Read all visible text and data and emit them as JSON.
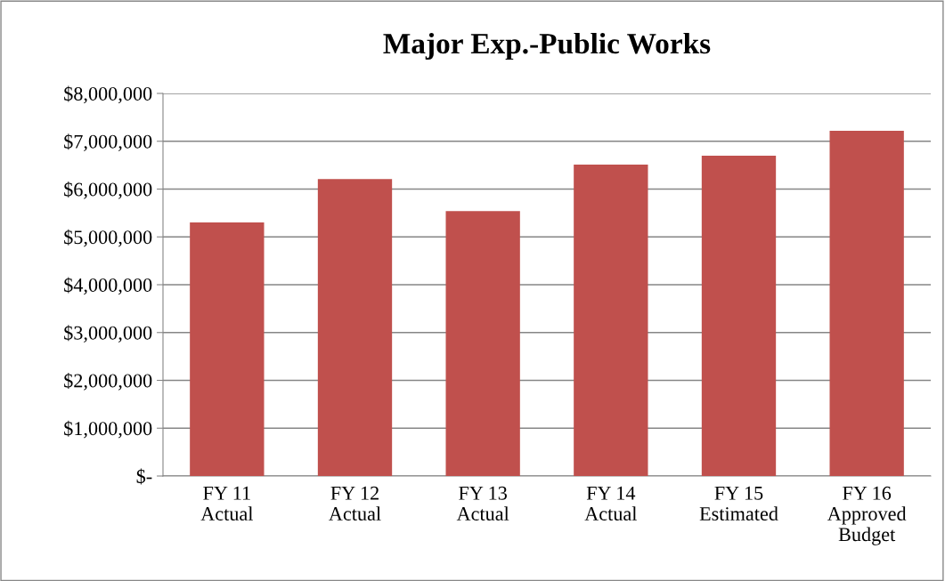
{
  "chart_data": {
    "type": "bar",
    "title": "Major Exp.-Public Works",
    "categories": [
      "FY 11\nActual",
      "FY 12\nActual",
      "FY 13\nActual",
      "FY 14\nActual",
      "FY 15\nEstimated",
      "FY 16\nApproved\nBudget"
    ],
    "values": [
      5300000,
      6210000,
      5540000,
      6510000,
      6700000,
      7220000
    ],
    "color": "#c0504d",
    "ylim": [
      0,
      8000000
    ],
    "yticks": [
      {
        "value": 0,
        "label": "$-"
      },
      {
        "value": 1000000,
        "label": "$1,000,000"
      },
      {
        "value": 2000000,
        "label": "$2,000,000"
      },
      {
        "value": 3000000,
        "label": "$3,000,000"
      },
      {
        "value": 4000000,
        "label": "$4,000,000"
      },
      {
        "value": 5000000,
        "label": "$5,000,000"
      },
      {
        "value": 6000000,
        "label": "$6,000,000"
      },
      {
        "value": 7000000,
        "label": "$7,000,000"
      },
      {
        "value": 8000000,
        "label": "$8,000,000"
      }
    ],
    "grid": "y",
    "legend": false
  }
}
